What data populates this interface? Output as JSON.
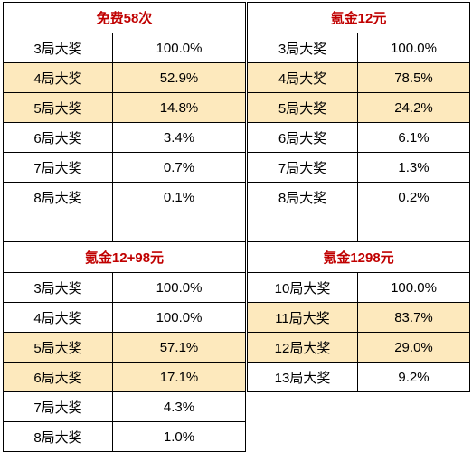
{
  "tables": [
    {
      "title": "免费58次",
      "rows": [
        {
          "label": "3局大奖",
          "value": "100.0%",
          "highlight": false
        },
        {
          "label": "4局大奖",
          "value": "52.9%",
          "highlight": true
        },
        {
          "label": "5局大奖",
          "value": "14.8%",
          "highlight": true
        },
        {
          "label": "6局大奖",
          "value": "3.4%",
          "highlight": false
        },
        {
          "label": "7局大奖",
          "value": "0.7%",
          "highlight": false
        },
        {
          "label": "8局大奖",
          "value": "0.1%",
          "highlight": false
        }
      ]
    },
    {
      "title": "氪金12元",
      "rows": [
        {
          "label": "3局大奖",
          "value": "100.0%",
          "highlight": false
        },
        {
          "label": "4局大奖",
          "value": "78.5%",
          "highlight": true
        },
        {
          "label": "5局大奖",
          "value": "24.2%",
          "highlight": true
        },
        {
          "label": "6局大奖",
          "value": "6.1%",
          "highlight": false
        },
        {
          "label": "7局大奖",
          "value": "1.3%",
          "highlight": false
        },
        {
          "label": "8局大奖",
          "value": "0.2%",
          "highlight": false
        }
      ]
    },
    {
      "title": "氪金12+98元",
      "rows": [
        {
          "label": "3局大奖",
          "value": "100.0%",
          "highlight": false
        },
        {
          "label": "4局大奖",
          "value": "100.0%",
          "highlight": false
        },
        {
          "label": "5局大奖",
          "value": "57.1%",
          "highlight": true
        },
        {
          "label": "6局大奖",
          "value": "17.1%",
          "highlight": true
        },
        {
          "label": "7局大奖",
          "value": "4.3%",
          "highlight": false
        },
        {
          "label": "8局大奖",
          "value": "1.0%",
          "highlight": false
        }
      ]
    },
    {
      "title": "氪金1298元",
      "rows": [
        {
          "label": "10局大奖",
          "value": "100.0%",
          "highlight": false
        },
        {
          "label": "11局大奖",
          "value": "83.7%",
          "highlight": true
        },
        {
          "label": "12局大奖",
          "value": "29.0%",
          "highlight": true
        },
        {
          "label": "13局大奖",
          "value": "9.2%",
          "highlight": false
        }
      ]
    }
  ],
  "colors": {
    "title": "#c00000",
    "highlight": "#fde9bd",
    "border": "#000000"
  }
}
